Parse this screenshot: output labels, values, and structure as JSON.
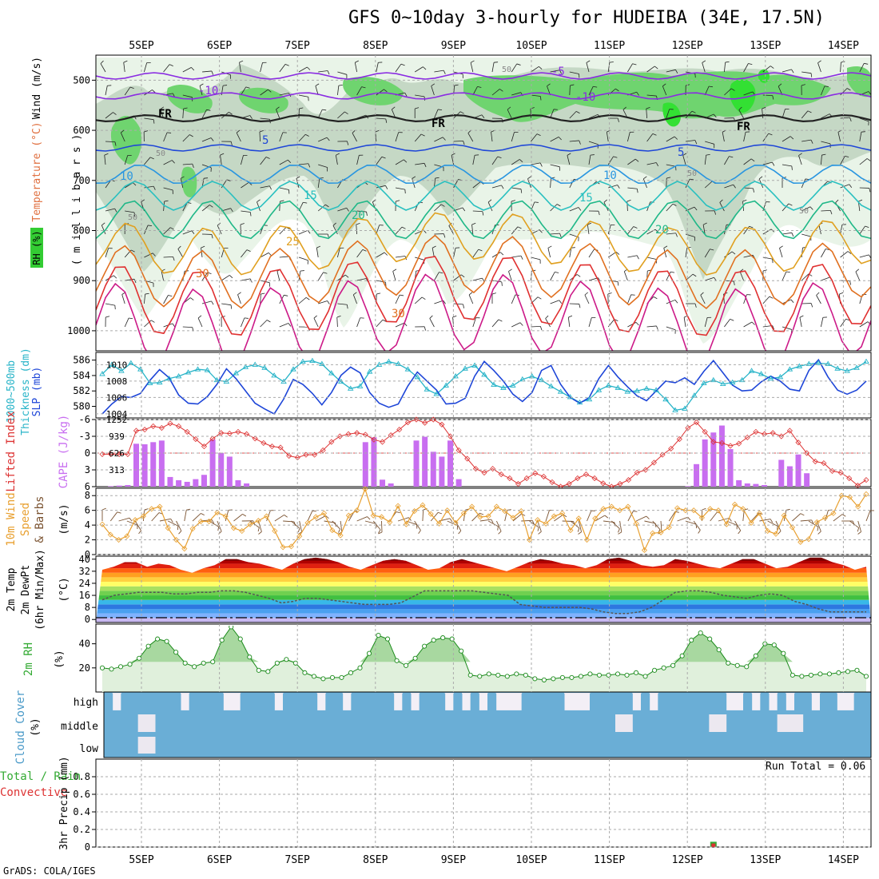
{
  "title": "GFS 0~10day 3-hourly for HUDEIBA (34E, 17.5N)",
  "footer": "GrADS: COLA/IGES",
  "dates": [
    "5SEP",
    "6SEP",
    "7SEP",
    "8SEP",
    "9SEP",
    "10SEP",
    "11SEP",
    "12SEP",
    "13SEP",
    "14SEP"
  ],
  "colors": {
    "grid": "#999999",
    "purple": "#8a2be2",
    "blue": "#1e46d8",
    "cyan": "#28b4c8",
    "green": "#33cc33",
    "orange": "#e08a1e",
    "red": "#dd2222"
  },
  "panel_labels": {
    "upper": [
      "RH (%)",
      "Temperature (°C)",
      "Wind (m/s)",
      "( m i l l i b a r s )"
    ],
    "thick": [
      "1000~500mb",
      "Thickness (dm)",
      "SLP (mb)"
    ],
    "lifted": [
      "Lifted Index",
      "CAPE (J/kg)"
    ],
    "wind": [
      "10m Wind",
      "Speed",
      "& Barbs",
      "(m/s)"
    ],
    "temp": [
      "2m Temp",
      "2m DewPt",
      "(6hr Min/Max)",
      "(°C)"
    ],
    "rh": [
      "2m RH",
      "(%)"
    ],
    "cloud": [
      "Cloud Cover",
      "(%)"
    ],
    "precip": [
      "Total / Rain",
      "Convective",
      "3hr Precip (mm)"
    ]
  },
  "contour_labels": [
    "-10",
    "-5",
    "-10",
    "5",
    "5",
    "10",
    "10",
    "15",
    "15",
    "20",
    "20",
    "25",
    "30",
    "30",
    "FR",
    "FR",
    "FR",
    "50",
    "50",
    "50",
    "50",
    "50"
  ],
  "chart_data": [
    {
      "type": "contour",
      "title": "Upper air: RH, Temperature, Wind",
      "ylabel": "millibars",
      "yticks": [
        500,
        600,
        700,
        800,
        900,
        1000
      ],
      "ylim": [
        1040,
        450
      ],
      "temperature_isotherms_C": [
        -10,
        -5,
        0,
        5,
        10,
        15,
        20,
        25,
        30,
        35
      ],
      "rh_levels_pct": [
        50,
        70,
        90
      ],
      "freezing_level": "FR"
    },
    {
      "type": "line",
      "title": "1000~500mb Thickness & SLP",
      "ylabel_left": "Thickness (dm)",
      "ylabel_right": "SLP (mb)",
      "yticks_left": [
        580,
        582,
        584,
        586
      ],
      "yticks_right": [
        1004,
        1006,
        1008,
        1010
      ],
      "ylim_left": [
        578.5,
        587
      ],
      "ylim_right": [
        1003.5,
        1011.5
      ],
      "series": [
        {
          "name": "Thickness",
          "axis": "left",
          "values": [
            584.2,
            585.4,
            584.6,
            585.6,
            584.8,
            583.0,
            583.1,
            583.6,
            583.9,
            584.4,
            584.8,
            584.7,
            583.4,
            583.2,
            584.3,
            585.1,
            585.4,
            585.0,
            584.0,
            583.2,
            584.8,
            585.8,
            585.9,
            585.5,
            584.3,
            583.2,
            582.3,
            582.6,
            584.5,
            585.4,
            585.8,
            585.5,
            584.8,
            583.8,
            582.2,
            581.6,
            582.7,
            583.9,
            584.9,
            585.3,
            584.1,
            582.8,
            582.4,
            582.7,
            583.5,
            583.9,
            583.4,
            582.6,
            581.9,
            581.2,
            580.5,
            580.9,
            582.1,
            582.7,
            582.4,
            581.9,
            582.0,
            582.3,
            582.1,
            580.9,
            579.5,
            579.7,
            581.4,
            583.0,
            583.4,
            582.9,
            583.1,
            583.4,
            584.6,
            584.2,
            583.6,
            583.8,
            584.8,
            585.2,
            585.5,
            585.6,
            585.5,
            584.9,
            584.6,
            585.0,
            585.8
          ]
        },
        {
          "name": "SLP",
          "axis": "right",
          "values": [
            1004.0,
            1005.2,
            1006.1,
            1006.0,
            1006.5,
            1008.1,
            1009.4,
            1008.4,
            1006.3,
            1005.3,
            1005.2,
            1006.1,
            1007.6,
            1009.5,
            1008.3,
            1006.8,
            1005.3,
            1004.6,
            1004.0,
            1005.8,
            1008.2,
            1007.6,
            1006.5,
            1005.1,
            1006.6,
            1008.7,
            1009.7,
            1009.0,
            1006.6,
            1005.3,
            1004.8,
            1005.2,
            1007.4,
            1009.1,
            1008.0,
            1006.9,
            1005.2,
            1005.3,
            1005.9,
            1008.6,
            1010.4,
            1009.3,
            1008.0,
            1006.4,
            1005.5,
            1006.6,
            1009.3,
            1009.9,
            1007.6,
            1006.0,
            1005.3,
            1006.0,
            1008.3,
            1009.9,
            1008.5,
            1007.3,
            1006.2,
            1005.6,
            1006.8,
            1008.0,
            1007.8,
            1008.4,
            1007.6,
            1009.2,
            1010.5,
            1009.0,
            1007.5,
            1006.8,
            1006.9,
            1007.9,
            1008.6,
            1008.0,
            1007.0,
            1006.8,
            1009.3,
            1010.6,
            1008.5,
            1006.9,
            1006.4,
            1006.9,
            1008.0
          ]
        }
      ]
    },
    {
      "type": "bar",
      "title": "Lifted Index & CAPE",
      "ylabel_left": "Lifted Index",
      "ylabel_right": "CAPE (J/kg)",
      "yticks_left": [
        -6,
        -3,
        0,
        3,
        6
      ],
      "yticks_right": [
        313,
        626,
        939,
        1252
      ],
      "ylim_left": [
        6,
        -6
      ],
      "ylim_right": [
        0,
        1252
      ],
      "series": [
        {
          "name": "Lifted Index",
          "type": "line",
          "values": [
            0.2,
            0.2,
            0.2,
            0.2,
            -4.0,
            -4.2,
            -4.8,
            -4.5,
            -5.3,
            -4.8,
            -3.8,
            -2.5,
            -1.2,
            -2.6,
            -3.6,
            -3.5,
            -3.8,
            -3.4,
            -2.6,
            -1.8,
            -1.2,
            -1.0,
            0.5,
            0.8,
            0.3,
            0.3,
            -0.5,
            -2.0,
            -3.0,
            -3.4,
            -3.6,
            -3.3,
            -2.4,
            -2.0,
            -3.2,
            -4.2,
            -5.5,
            -6.0,
            -5.4,
            -6.0,
            -5.1,
            -3.0,
            -0.5,
            1.0,
            2.8,
            3.5,
            2.8,
            3.8,
            4.5,
            5.5,
            4.5,
            3.6,
            4.2,
            5.2,
            6.0,
            5.5,
            4.5,
            3.8,
            4.5,
            5.4,
            6.0,
            5.5,
            4.8,
            3.5,
            3.0,
            1.7,
            0.3,
            -0.8,
            -2.5,
            -4.5,
            -5.5,
            -3.8,
            -2.0,
            -1.8,
            -1.3,
            -1.7,
            -2.8,
            -3.8,
            -3.4,
            -3.6,
            -3.0,
            -4.0,
            -1.9,
            0.0,
            1.5,
            1.8,
            3.2,
            3.5,
            4.5,
            5.8,
            4.8
          ]
        },
        {
          "name": "CAPE",
          "type": "bar",
          "values": [
            0,
            10,
            20,
            30,
            800,
            790,
            830,
            860,
            180,
            120,
            90,
            140,
            220,
            880,
            630,
            560,
            120,
            60,
            0,
            0,
            0,
            0,
            0,
            0,
            0,
            0,
            0,
            0,
            0,
            0,
            0,
            830,
            920,
            130,
            60,
            0,
            0,
            860,
            930,
            650,
            560,
            860,
            140,
            0,
            0,
            0,
            0,
            0,
            0,
            0,
            0,
            0,
            0,
            0,
            0,
            0,
            0,
            0,
            0,
            0,
            0,
            0,
            0,
            0,
            0,
            0,
            0,
            0,
            0,
            10,
            420,
            880,
            1010,
            1140,
            700,
            120,
            60,
            50,
            30,
            0,
            500,
            380,
            600,
            250,
            0,
            0,
            0,
            0,
            0,
            0,
            0
          ]
        }
      ]
    },
    {
      "type": "line",
      "title": "10m Wind Speed & Barbs",
      "ylabel": "(m/s)",
      "yticks": [
        0,
        2,
        4,
        6,
        8
      ],
      "ylim": [
        0,
        9
      ],
      "series": [
        {
          "name": "Wind speed",
          "values": [
            4.1,
            2.7,
            2.0,
            2.5,
            4.7,
            5.2,
            6.2,
            6.5,
            3.6,
            2.0,
            0.8,
            3.5,
            4.5,
            4.5,
            5.7,
            5.2,
            3.6,
            3.2,
            4.1,
            4.6,
            5.2,
            3.2,
            1.0,
            1.1,
            2.5,
            4.3,
            5.1,
            5.6,
            3.3,
            2.6,
            5.3,
            6.0,
            8.9,
            5.3,
            5.1,
            4.4,
            6.6,
            4.1,
            5.9,
            6.7,
            5.5,
            4.2,
            6.0,
            4.3,
            5.6,
            6.5,
            5.1,
            5.2,
            6.5,
            5.9,
            5.0,
            5.9,
            2.0,
            4.7,
            4.2,
            5.2,
            5.6,
            3.3,
            4.9,
            2.0,
            4.9,
            6.2,
            6.5,
            6.0,
            6.5,
            4.2,
            0.6,
            2.9,
            3.0,
            3.7,
            6.3,
            6.0,
            6.0,
            5.0,
            6.2,
            6.0,
            4.1,
            6.8,
            6.2,
            4.3,
            5.6,
            3.2,
            2.8,
            5.3,
            3.7,
            1.7,
            2.1,
            4.4,
            5.0,
            5.6,
            8.0,
            7.8,
            6.5,
            8.2
          ]
        }
      ]
    },
    {
      "type": "area",
      "title": "2m Temp & 2m DewPt (6hr Min/Max)",
      "ylabel": "(°C)",
      "yticks": [
        0,
        8,
        16,
        24,
        32,
        40
      ],
      "ylim": [
        -2,
        42
      ],
      "series": [
        {
          "name": "2m Temp",
          "values": [
            33,
            35,
            38,
            38,
            35,
            37,
            36,
            33,
            31,
            34,
            36,
            40,
            40,
            38,
            37,
            35,
            33,
            37,
            40,
            41,
            40,
            38,
            35,
            33,
            36,
            39,
            40,
            39,
            36,
            33,
            34,
            38,
            40,
            38,
            36,
            34,
            32,
            35,
            38,
            40,
            39,
            37,
            36,
            34,
            36,
            40,
            41,
            39,
            36,
            35,
            36,
            40,
            39,
            37,
            35,
            34,
            37,
            40,
            40,
            37,
            34,
            35,
            38,
            41,
            41,
            38,
            36,
            33,
            35
          ]
        },
        {
          "name": "2m DewPt",
          "values": [
            13,
            16,
            17,
            18,
            18,
            18,
            17,
            17,
            18,
            18,
            19,
            19,
            18,
            16,
            14,
            11,
            12,
            14,
            14,
            13,
            12,
            11,
            10,
            10,
            10,
            11,
            15,
            19,
            19,
            19,
            19,
            19,
            18,
            17,
            16,
            10,
            9,
            8,
            8,
            8,
            8,
            7,
            5,
            4,
            4,
            5,
            8,
            13,
            18,
            19,
            19,
            18,
            16,
            15,
            14,
            16,
            17,
            16,
            12,
            10,
            7,
            5,
            5,
            5,
            5
          ]
        }
      ]
    },
    {
      "type": "area",
      "title": "2m RH",
      "ylabel": "(%)",
      "yticks": [
        20,
        40
      ],
      "ylim": [
        0,
        55
      ],
      "series": [
        {
          "name": "2m RH",
          "values": [
            20,
            19,
            21,
            23,
            28,
            38,
            44,
            42,
            33,
            24,
            21,
            24,
            25,
            43,
            54,
            44,
            29,
            18,
            17,
            24,
            27,
            24,
            16,
            13,
            11,
            12,
            12,
            16,
            20,
            32,
            47,
            44,
            26,
            22,
            28,
            38,
            43,
            45,
            44,
            34,
            14,
            13,
            15,
            14,
            13,
            15,
            14,
            11,
            10,
            11,
            12,
            12,
            13,
            15,
            14,
            14,
            15,
            14,
            16,
            13,
            18,
            20,
            22,
            30,
            43,
            49,
            44,
            35,
            24,
            22,
            21,
            30,
            40,
            39,
            32,
            14,
            13,
            14,
            15,
            15,
            16,
            17,
            18,
            13
          ]
        }
      ]
    },
    {
      "type": "heatmap",
      "title": "Cloud Cover",
      "ylabel": "(%)",
      "layers": [
        "high",
        "middle",
        "low"
      ],
      "high_gaps": [
        1,
        9,
        14,
        15,
        20,
        25,
        28,
        34,
        36,
        40,
        42,
        44,
        46,
        47,
        48,
        54,
        55,
        56,
        62,
        64,
        73,
        74,
        76,
        78,
        80,
        83,
        86,
        87
      ],
      "middle_gaps": [
        4,
        5,
        60,
        61,
        71,
        72,
        79,
        80,
        81
      ],
      "low_gaps": [
        4,
        5
      ]
    },
    {
      "type": "bar",
      "title": "3hr Precip",
      "ylabel": "3hr Precip (mm)",
      "yticks": [
        0,
        0.2,
        0.4,
        0.6,
        0.8
      ],
      "ylim": [
        0,
        1.0
      ],
      "run_total": "Run Total = 0.06",
      "series": [
        {
          "name": "Total / Rain",
          "values": [
            {
              "index": 64,
              "value": 0.06
            }
          ]
        },
        {
          "name": "Convective",
          "values": [
            {
              "index": 64,
              "value": 0.04
            }
          ]
        }
      ]
    }
  ]
}
